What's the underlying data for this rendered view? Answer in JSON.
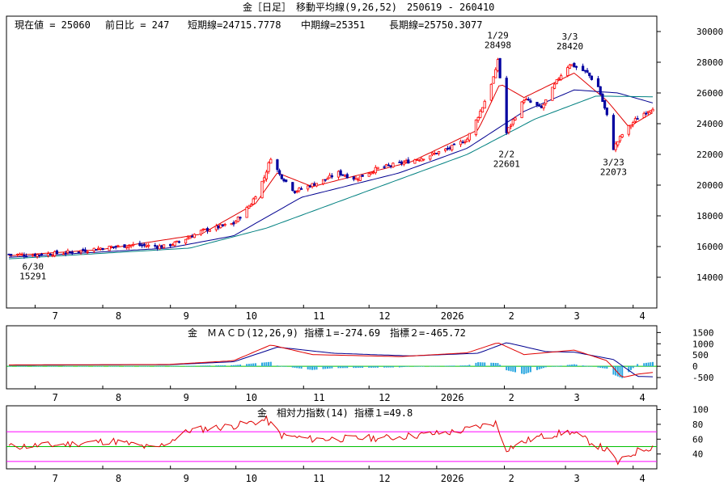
{
  "header": {
    "title": "金［日足］　移動平均線(9,26,52)　250619 - 260410",
    "current_price": "現在値 = 25060",
    "change": "前日比 = 247",
    "short_ma": "短期線=24715.7778",
    "mid_ma": "中期線=25351",
    "long_ma": "長期線=25750.3077"
  },
  "colors": {
    "background": "#ffffff",
    "up_candle": "#ff0000",
    "down_candle": "#0000a0",
    "ma_short": "#e00000",
    "ma_mid": "#000090",
    "ma_long": "#008080",
    "macd_hist": "#2aa7e0",
    "zero_line": "#00c000",
    "rsi_line": "#e00000",
    "rsi_band_upper": "#ff00ff",
    "rsi_band_mid": "#00c000",
    "rsi_band_lower": "#ff00ff"
  },
  "x_axis": {
    "month_labels": [
      "7",
      "8",
      "9",
      "10",
      "11",
      "12",
      "2026",
      "2",
      "3",
      "4"
    ]
  },
  "chart_data": [
    {
      "type": "candlestick",
      "title": "金［日足］　移動平均線(9,26,52)　250619 - 260410",
      "ylim": [
        12000,
        31000
      ],
      "yticks": [
        14000,
        16000,
        18000,
        20000,
        22000,
        24000,
        26000,
        28000,
        30000
      ],
      "x_range": [
        "2025-06-19",
        "2026-04-10"
      ],
      "anchors": [
        {
          "date": "2025-06-30",
          "value": 15291,
          "label": "6/30\n15291"
        },
        {
          "date": "2025-10-15",
          "value": 22200
        },
        {
          "date": "2025-10-28",
          "value": 19400
        },
        {
          "date": "2026-01-29",
          "value": 28498,
          "label": "1/29\n28498"
        },
        {
          "date": "2026-02-02",
          "value": 22601,
          "label": "2/2\n22601"
        },
        {
          "date": "2026-03-03",
          "value": 28420,
          "label": "3/3\n28420"
        },
        {
          "date": "2026-03-23",
          "value": 22073,
          "label": "3/23\n22073"
        },
        {
          "date": "2026-04-10",
          "value": 25060
        }
      ],
      "close_path": [
        [
          "2025-06-19",
          15500
        ],
        [
          "2025-06-30",
          15450
        ],
        [
          "2025-07-15",
          15600
        ],
        [
          "2025-07-31",
          15900
        ],
        [
          "2025-08-15",
          16100
        ],
        [
          "2025-08-29",
          16000
        ],
        [
          "2025-09-05",
          16300
        ],
        [
          "2025-09-15",
          17000
        ],
        [
          "2025-09-30",
          17500
        ],
        [
          "2025-10-08",
          18800
        ],
        [
          "2025-10-14",
          20500
        ],
        [
          "2025-10-17",
          21800
        ],
        [
          "2025-10-21",
          20700
        ],
        [
          "2025-10-28",
          19600
        ],
        [
          "2025-11-10",
          20300
        ],
        [
          "2025-11-17",
          20800
        ],
        [
          "2025-11-25",
          20400
        ],
        [
          "2025-12-05",
          21100
        ],
        [
          "2025-12-15",
          21400
        ],
        [
          "2025-12-26",
          21800
        ],
        [
          "2026-01-07",
          22400
        ],
        [
          "2026-01-15",
          23000
        ],
        [
          "2026-01-22",
          25100
        ],
        [
          "2026-01-28",
          27400
        ],
        [
          "2026-01-29",
          28200
        ],
        [
          "2026-02-02",
          23400
        ],
        [
          "2026-02-10",
          25600
        ],
        [
          "2026-02-18",
          25000
        ],
        [
          "2026-02-26",
          27000
        ],
        [
          "2026-03-03",
          27900
        ],
        [
          "2026-03-11",
          27300
        ],
        [
          "2026-03-16",
          26400
        ],
        [
          "2026-03-20",
          24500
        ],
        [
          "2026-03-23",
          22400
        ],
        [
          "2026-03-27",
          23300
        ],
        [
          "2026-04-03",
          24400
        ],
        [
          "2026-04-10",
          25060
        ]
      ],
      "moving_averages": [
        {
          "name": "9",
          "values": [
            [
              "2025-06-19",
              15400
            ],
            [
              "2025-07-31",
              15800
            ],
            [
              "2025-09-15",
              16800
            ],
            [
              "2025-10-10",
              18800
            ],
            [
              "2025-10-20",
              20800
            ],
            [
              "2025-11-05",
              19900
            ],
            [
              "2025-12-20",
              21500
            ],
            [
              "2026-01-20",
              23600
            ],
            [
              "2026-01-30",
              26600
            ],
            [
              "2026-02-10",
              25700
            ],
            [
              "2026-03-05",
              27300
            ],
            [
              "2026-03-20",
              25500
            ],
            [
              "2026-03-30",
              23800
            ],
            [
              "2026-04-10",
              24716
            ]
          ]
        },
        {
          "name": "26",
          "values": [
            [
              "2025-06-19",
              15300
            ],
            [
              "2025-08-31",
              15900
            ],
            [
              "2025-09-30",
              16700
            ],
            [
              "2025-10-31",
              19200
            ],
            [
              "2025-12-15",
              20800
            ],
            [
              "2026-01-15",
              22400
            ],
            [
              "2026-02-10",
              24800
            ],
            [
              "2026-03-05",
              26200
            ],
            [
              "2026-03-25",
              26000
            ],
            [
              "2026-04-10",
              25351
            ]
          ]
        },
        {
          "name": "52",
          "values": [
            [
              "2025-06-19",
              15200
            ],
            [
              "2025-09-10",
              15900
            ],
            [
              "2025-10-15",
              17200
            ],
            [
              "2025-11-30",
              19600
            ],
            [
              "2026-01-15",
              22000
            ],
            [
              "2026-02-15",
              24300
            ],
            [
              "2026-03-15",
              25800
            ],
            [
              "2026-04-10",
              25750
            ]
          ]
        }
      ]
    },
    {
      "type": "line",
      "title": "金　ＭＡＣＤ(12,26,9) 指標１=-274.69　指標２=-465.72",
      "ylim": [
        -1000,
        1800
      ],
      "yticks": [
        -500,
        0,
        500,
        1000,
        1500
      ],
      "series": [
        {
          "name": "指標１",
          "values": [
            [
              "2025-06-19",
              60
            ],
            [
              "2025-08-31",
              80
            ],
            [
              "2025-09-30",
              250
            ],
            [
              "2025-10-17",
              950
            ],
            [
              "2025-11-05",
              520
            ],
            [
              "2025-12-15",
              430
            ],
            [
              "2026-01-15",
              600
            ],
            [
              "2026-01-29",
              1050
            ],
            [
              "2026-02-10",
              520
            ],
            [
              "2026-03-05",
              720
            ],
            [
              "2026-03-20",
              250
            ],
            [
              "2026-03-27",
              -500
            ],
            [
              "2026-04-03",
              -350
            ],
            [
              "2026-04-10",
              -275
            ]
          ]
        },
        {
          "name": "指標２",
          "values": [
            [
              "2025-06-19",
              50
            ],
            [
              "2025-08-31",
              70
            ],
            [
              "2025-09-30",
              200
            ],
            [
              "2025-10-20",
              850
            ],
            [
              "2025-11-15",
              580
            ],
            [
              "2025-12-20",
              460
            ],
            [
              "2026-01-20",
              580
            ],
            [
              "2026-02-02",
              1050
            ],
            [
              "2026-02-20",
              650
            ],
            [
              "2026-03-05",
              630
            ],
            [
              "2026-03-23",
              300
            ],
            [
              "2026-04-03",
              -450
            ],
            [
              "2026-04-10",
              -466
            ]
          ]
        }
      ]
    },
    {
      "type": "line",
      "title": "金　相対力指数(14) 指標１=49.8",
      "ylim": [
        20,
        105
      ],
      "yticks": [
        40,
        60,
        80,
        100
      ],
      "bands": [
        70,
        50,
        30
      ],
      "series": [
        {
          "name": "指標１",
          "values": [
            [
              "2025-06-19",
              50
            ],
            [
              "2025-07-10",
              52
            ],
            [
              "2025-08-05",
              58
            ],
            [
              "2025-08-25",
              47
            ],
            [
              "2025-09-10",
              72
            ],
            [
              "2025-09-30",
              78
            ],
            [
              "2025-10-15",
              86
            ],
            [
              "2025-10-22",
              65
            ],
            [
              "2025-11-05",
              60
            ],
            [
              "2025-12-10",
              62
            ],
            [
              "2026-01-10",
              70
            ],
            [
              "2026-01-28",
              82
            ],
            [
              "2026-02-02",
              47
            ],
            [
              "2026-02-15",
              62
            ],
            [
              "2026-03-03",
              70
            ],
            [
              "2026-03-20",
              45
            ],
            [
              "2026-03-25",
              28
            ],
            [
              "2026-04-03",
              44
            ],
            [
              "2026-04-10",
              49.8
            ]
          ]
        }
      ]
    }
  ]
}
